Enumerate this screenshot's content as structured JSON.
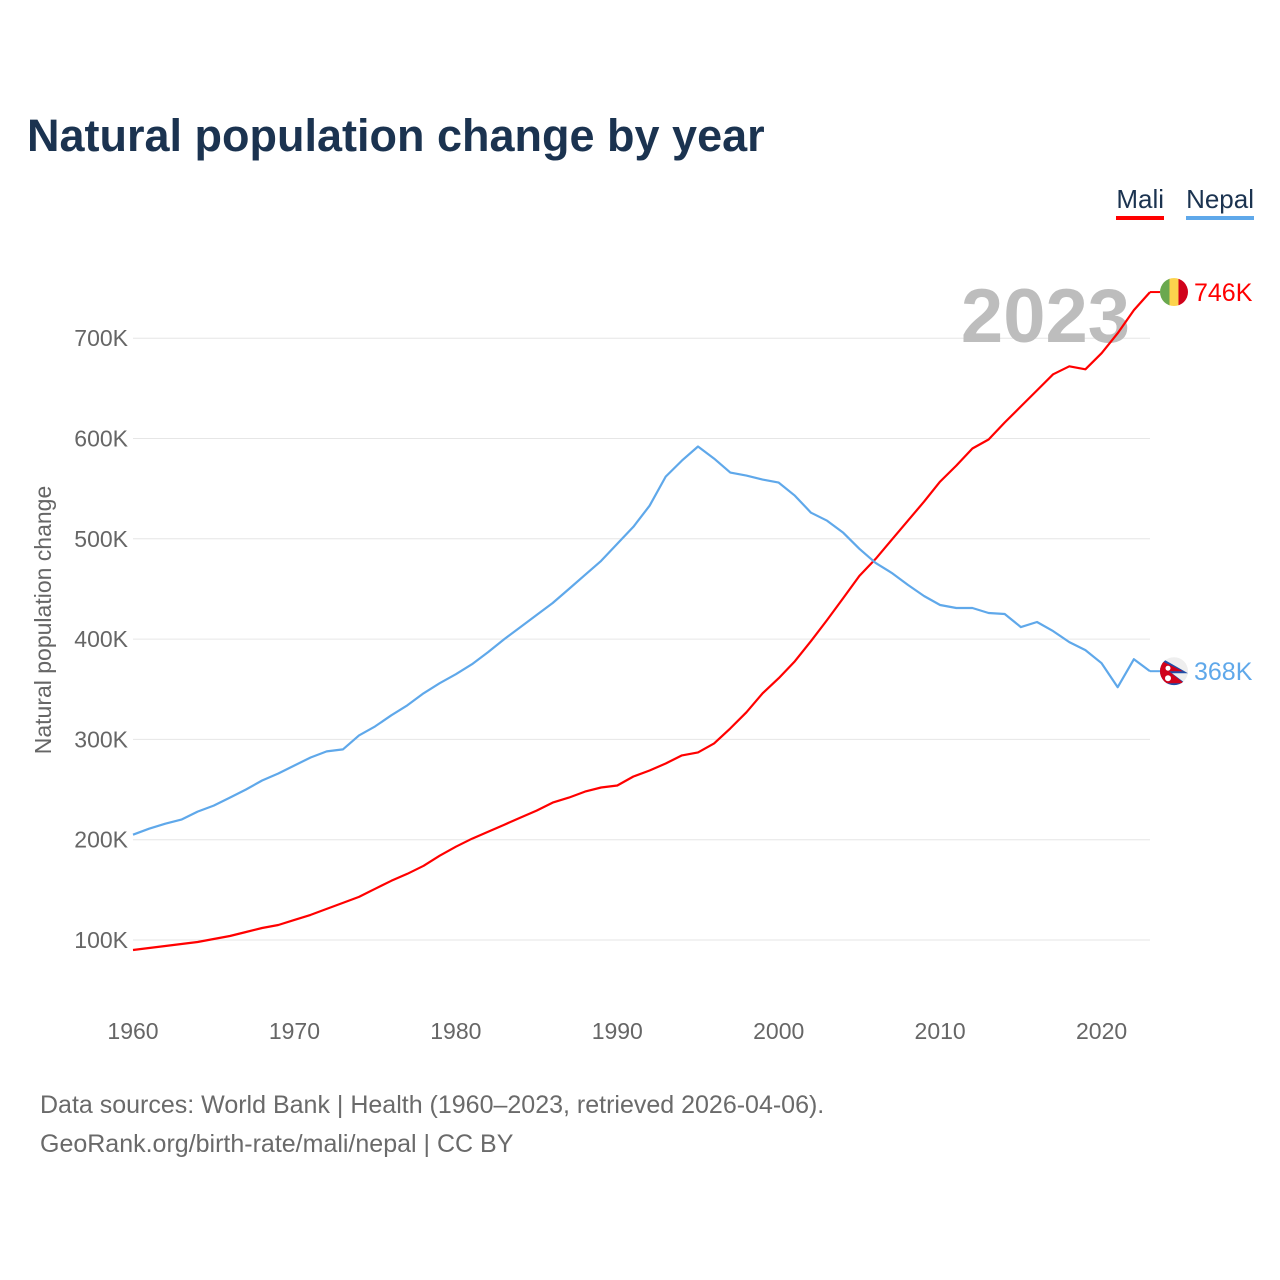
{
  "chart_data": {
    "type": "line",
    "title": "Natural population change by year",
    "xlabel": "",
    "ylabel": "Natural population change",
    "xlim": [
      1960,
      2023
    ],
    "ylim": [
      40000,
      770000
    ],
    "grid": true,
    "legend_placement": "top-right",
    "year_label": "2023",
    "x_ticks": [
      "1960",
      "1970",
      "1980",
      "1990",
      "2000",
      "2010",
      "2020"
    ],
    "y_ticks": [
      {
        "value": 100000,
        "label": "100K"
      },
      {
        "value": 200000,
        "label": "200K"
      },
      {
        "value": 300000,
        "label": "300K"
      },
      {
        "value": 400000,
        "label": "400K"
      },
      {
        "value": 500000,
        "label": "500K"
      },
      {
        "value": 600000,
        "label": "600K"
      },
      {
        "value": 700000,
        "label": "700K"
      }
    ],
    "x": [
      1960,
      1961,
      1962,
      1963,
      1964,
      1965,
      1966,
      1967,
      1968,
      1969,
      1970,
      1971,
      1972,
      1973,
      1974,
      1975,
      1976,
      1977,
      1978,
      1979,
      1980,
      1981,
      1982,
      1983,
      1984,
      1985,
      1986,
      1987,
      1988,
      1989,
      1990,
      1991,
      1992,
      1993,
      1994,
      1995,
      1996,
      1997,
      1998,
      1999,
      2000,
      2001,
      2002,
      2003,
      2004,
      2005,
      2006,
      2007,
      2008,
      2009,
      2010,
      2011,
      2012,
      2013,
      2014,
      2015,
      2016,
      2017,
      2018,
      2019,
      2020,
      2021,
      2022,
      2023
    ],
    "series": [
      {
        "name": "Mali",
        "color": "#ff0000",
        "end_label": "746K",
        "flag": "mali-flag",
        "values": [
          90,
          92,
          94,
          96,
          98,
          101,
          104,
          108,
          112,
          115,
          120,
          125,
          131,
          137,
          143,
          151,
          159,
          166,
          174,
          184,
          193,
          201,
          208,
          215,
          222,
          229,
          237,
          242,
          248,
          252,
          254,
          263,
          269,
          276,
          284,
          287,
          296,
          311,
          327,
          346,
          361,
          378,
          398,
          419,
          441,
          463,
          480,
          499,
          518,
          537,
          557,
          573,
          590,
          599,
          616,
          632,
          648,
          664,
          672,
          669,
          685,
          705,
          728,
          746
        ]
      },
      {
        "name": "Nepal",
        "color": "#5fa8ea",
        "end_label": "368K",
        "flag": "nepal-flag",
        "values": [
          205,
          211,
          216,
          220,
          228,
          234,
          242,
          250,
          259,
          266,
          274,
          282,
          288,
          290,
          304,
          313,
          324,
          334,
          346,
          356,
          365,
          375,
          387,
          400,
          412,
          424,
          436,
          450,
          464,
          478,
          495,
          512,
          533,
          562,
          578,
          592,
          580,
          566,
          563,
          559,
          556,
          543,
          526,
          518,
          506,
          490,
          476,
          466,
          454,
          443,
          434,
          431,
          431,
          426,
          425,
          412,
          417,
          408,
          397,
          389,
          376,
          352,
          380,
          368
        ]
      }
    ],
    "value_unit": "thousands"
  },
  "footer": {
    "line1": "Data sources: World Bank | Health (1960–2023, retrieved 2026-04-06).",
    "line2": "GeoRank.org/birth-rate/mali/nepal | CC BY"
  }
}
